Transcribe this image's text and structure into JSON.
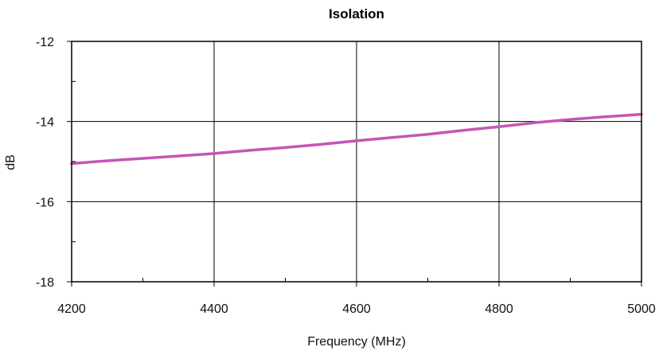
{
  "chart_data": {
    "type": "line",
    "title": "Isolation",
    "xlabel": "Frequency (MHz)",
    "ylabel": "dB",
    "xlim": [
      4200,
      5000
    ],
    "ylim": [
      -18,
      -12
    ],
    "x_ticks": [
      4200,
      4400,
      4600,
      4800,
      5000
    ],
    "y_ticks": [
      -12,
      -14,
      -16,
      -18
    ],
    "x_tick_labels": [
      "4200",
      "4400",
      "4600",
      "4800",
      "5000"
    ],
    "y_tick_labels": [
      "-12",
      "-14",
      "-16",
      "-18"
    ],
    "grid": true,
    "series": [
      {
        "color": "#c456b4",
        "x": [
          4200,
          4250,
          4300,
          4350,
          4400,
          4450,
          4500,
          4550,
          4600,
          4650,
          4700,
          4750,
          4800,
          4850,
          4900,
          4950,
          5000
        ],
        "y": [
          -15.05,
          -14.98,
          -14.92,
          -14.86,
          -14.8,
          -14.72,
          -14.65,
          -14.57,
          -14.48,
          -14.4,
          -14.32,
          -14.22,
          -14.13,
          -14.03,
          -13.95,
          -13.88,
          -13.82
        ]
      }
    ]
  }
}
